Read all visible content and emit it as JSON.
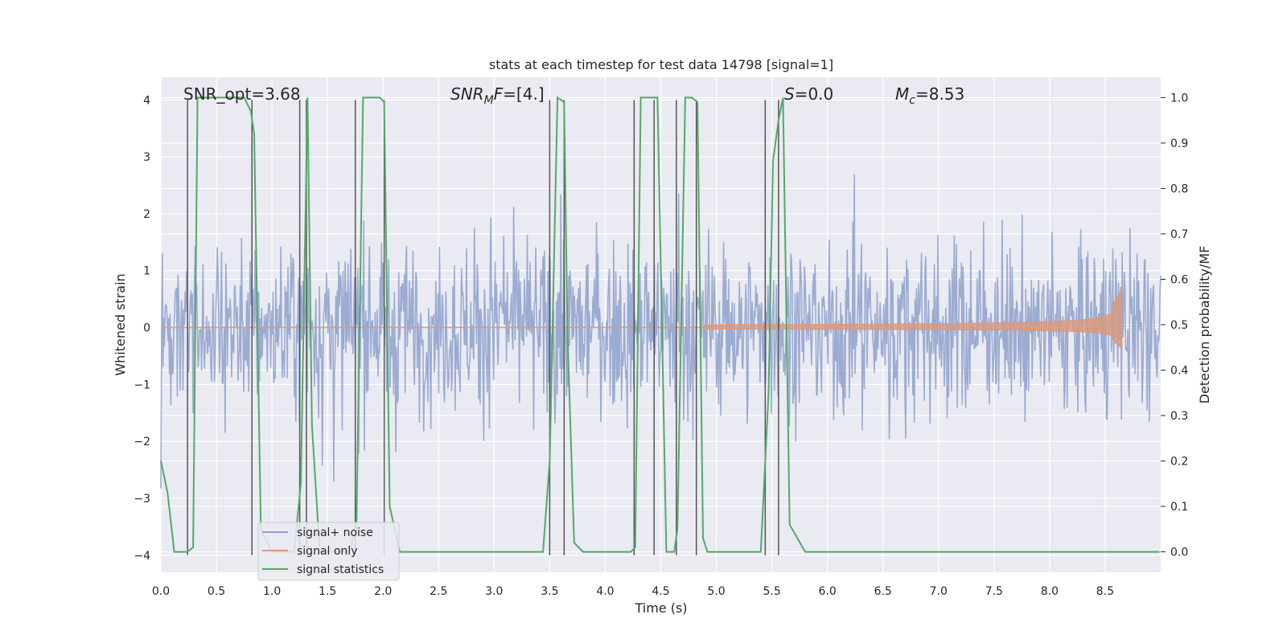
{
  "chart_data": {
    "type": "line",
    "title": "stats at each timestep for test data 14798 [signal=1]",
    "xlabel": "Time (s)",
    "ylabel_left": "Whitened strain",
    "ylabel_right": "Detection probability/MF",
    "xlim": [
      0.0,
      9.0
    ],
    "ylim_left": [
      -4.3,
      4.4
    ],
    "ylim_right": [
      -0.045,
      1.045
    ],
    "x_ticks": [
      "0.0",
      "0.5",
      "1.0",
      "1.5",
      "2.0",
      "2.5",
      "3.0",
      "3.5",
      "4.0",
      "4.5",
      "5.0",
      "5.5",
      "6.0",
      "6.5",
      "7.0",
      "7.5",
      "8.0",
      "8.5"
    ],
    "y_ticks_left": [
      "−4",
      "−3",
      "−2",
      "−1",
      "0",
      "1",
      "2",
      "3",
      "4"
    ],
    "y_ticks_right": [
      "0.0",
      "0.1",
      "0.2",
      "0.3",
      "0.4",
      "0.5",
      "0.6",
      "0.7",
      "0.8",
      "0.9",
      "1.0"
    ],
    "grid": true,
    "legend_position": "lower-left",
    "annotations": [
      {
        "label": "SNR_opt=3.68",
        "x": 0.2
      },
      {
        "label": "SNR_MF=[4.]",
        "x": 2.6
      },
      {
        "label": "S=0.0",
        "x": 5.6
      },
      {
        "label": "M_c=8.53",
        "x": 6.6
      }
    ],
    "series": [
      {
        "name": "signal+ noise",
        "color": "#8da0cb",
        "axis": "left",
        "noise_envelope": {
          "typical_max": 2.2,
          "typical_min": -2.2,
          "peak_max": 3.85,
          "peak_min": -3.9
        }
      },
      {
        "name": "signal only",
        "color": "#d99a7f",
        "axis": "left",
        "chirp": {
          "start": 4.9,
          "peak_time": 8.65,
          "peak_amplitude": 0.68,
          "mid_amplitude": 0.12
        }
      },
      {
        "name": "signal statistics",
        "color": "#55a868",
        "axis": "right",
        "x": [
          0.0,
          0.06,
          0.12,
          0.18,
          0.24,
          0.29,
          0.33,
          0.45,
          0.55,
          0.65,
          0.75,
          0.81,
          0.84,
          0.9,
          1.0,
          1.1,
          1.2,
          1.26,
          1.29,
          1.32,
          1.36,
          1.43,
          1.5,
          1.6,
          1.7,
          1.73,
          1.76,
          1.82,
          1.9,
          1.97,
          2.01,
          2.06,
          2.15,
          2.3,
          2.6,
          3.0,
          3.3,
          3.44,
          3.5,
          3.57,
          3.63,
          3.66,
          3.72,
          3.8,
          4.0,
          4.15,
          4.23,
          4.27,
          4.32,
          4.4,
          4.44,
          4.47,
          4.55,
          4.62,
          4.65,
          4.72,
          4.78,
          4.83,
          4.88,
          4.92,
          5.0,
          5.2,
          5.4,
          5.47,
          5.51,
          5.56,
          5.6,
          5.66,
          5.8,
          6.2,
          7.0,
          8.0,
          8.99
        ],
        "y": [
          0.2,
          0.13,
          0.0,
          0.0,
          0.0,
          0.01,
          1.0,
          1.0,
          1.0,
          1.0,
          1.0,
          0.97,
          0.92,
          0.05,
          0.0,
          0.0,
          0.0,
          0.15,
          0.58,
          1.0,
          0.28,
          0.0,
          0.0,
          0.0,
          0.0,
          0.03,
          0.05,
          1.0,
          1.0,
          1.0,
          0.99,
          0.1,
          0.0,
          0.0,
          0.0,
          0.0,
          0.0,
          0.0,
          0.2,
          1.0,
          0.99,
          0.48,
          0.02,
          0.0,
          0.0,
          0.0,
          0.0,
          0.01,
          1.0,
          1.0,
          1.0,
          1.0,
          0.0,
          0.0,
          0.05,
          1.0,
          1.0,
          0.99,
          0.03,
          0.0,
          0.0,
          0.0,
          0.0,
          0.35,
          0.86,
          0.95,
          1.0,
          0.06,
          0.0,
          0.0,
          0.0,
          0.0,
          0.0
        ]
      }
    ],
    "vlines": {
      "color": "#555555",
      "x": [
        0.24,
        0.82,
        1.25,
        1.31,
        1.75,
        2.01,
        3.5,
        3.63,
        4.26,
        4.44,
        4.64,
        4.82,
        5.44,
        5.56
      ]
    }
  }
}
